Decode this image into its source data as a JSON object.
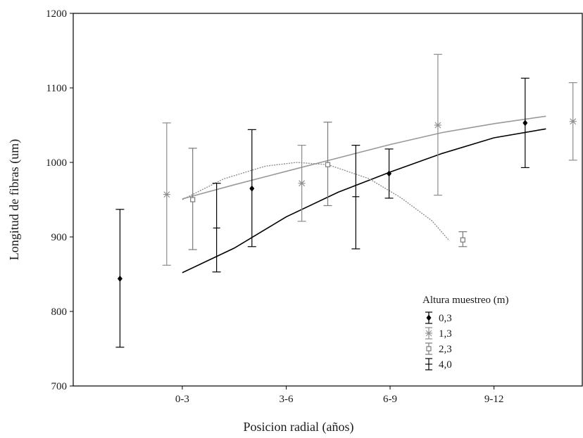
{
  "chart_data": {
    "type": "scatter",
    "xlabel": "Posicion radial (años)",
    "ylabel": "Longitud de fibras (um)",
    "ylim": [
      700,
      1200
    ],
    "yticks": [
      700,
      800,
      900,
      1000,
      1100,
      1200
    ],
    "xlim": [
      -1.05,
      3.85
    ],
    "categories": [
      "0-3",
      "3-6",
      "6-9",
      "9-12"
    ],
    "grid": false,
    "legend": {
      "title": "Altura muestreo (m)",
      "placement": "bottom-right"
    },
    "series": [
      {
        "name": "0,3",
        "marker": "diamond",
        "color": "#000000",
        "points": [
          {
            "x": -0.6,
            "y": 844,
            "low": 752,
            "high": 937
          },
          {
            "x": 0.67,
            "y": 965,
            "low": 887,
            "high": 1044
          },
          {
            "x": 1.99,
            "y": 985,
            "low": 952,
            "high": 1018
          },
          {
            "x": 3.3,
            "y": 1053,
            "low": 993,
            "high": 1113
          }
        ],
        "fit": [
          [
            0,
            852
          ],
          [
            0.5,
            885
          ],
          [
            1,
            927
          ],
          [
            1.5,
            960
          ],
          [
            2,
            987
          ],
          [
            2.5,
            1012
          ],
          [
            3,
            1033
          ],
          [
            3.5,
            1045
          ]
        ]
      },
      {
        "name": "1,3",
        "marker": "asterisk",
        "color": "#8c8c8c",
        "points": [
          {
            "x": -0.15,
            "y": 957,
            "low": 862,
            "high": 1053
          },
          {
            "x": 1.15,
            "y": 972,
            "low": 921,
            "high": 1023
          },
          {
            "x": 2.46,
            "y": 1050,
            "low": 956,
            "high": 1145
          },
          {
            "x": 3.76,
            "y": 1055,
            "low": 1003,
            "high": 1107
          }
        ],
        "fit": [
          [
            0,
            951
          ],
          [
            0.5,
            970
          ],
          [
            1,
            988
          ],
          [
            1.5,
            1006
          ],
          [
            2,
            1024
          ],
          [
            2.5,
            1040
          ],
          [
            3,
            1052
          ],
          [
            3.5,
            1062
          ]
        ]
      },
      {
        "name": "2,3",
        "marker": "square",
        "color": "#7a7a7a",
        "points": [
          {
            "x": 0.1,
            "y": 950,
            "low": 883,
            "high": 1019
          },
          {
            "x": 1.4,
            "y": 997,
            "low": 942,
            "high": 1054
          },
          {
            "x": 2.7,
            "y": 896,
            "low": 887,
            "high": 907
          }
        ],
        "fit": [
          [
            0,
            950
          ],
          [
            0.4,
            978
          ],
          [
            0.8,
            995
          ],
          [
            1.1,
            1000
          ],
          [
            1.4,
            997
          ],
          [
            1.8,
            978
          ],
          [
            2.1,
            953
          ],
          [
            2.4,
            922
          ],
          [
            2.57,
            895
          ]
        ]
      },
      {
        "name": "4,0",
        "marker": "bar",
        "color": "#000000",
        "points": [
          {
            "x": 0.33,
            "y": 912,
            "low": 853,
            "high": 972
          },
          {
            "x": 1.67,
            "y": 954,
            "low": 884,
            "high": 1023
          }
        ]
      }
    ]
  }
}
